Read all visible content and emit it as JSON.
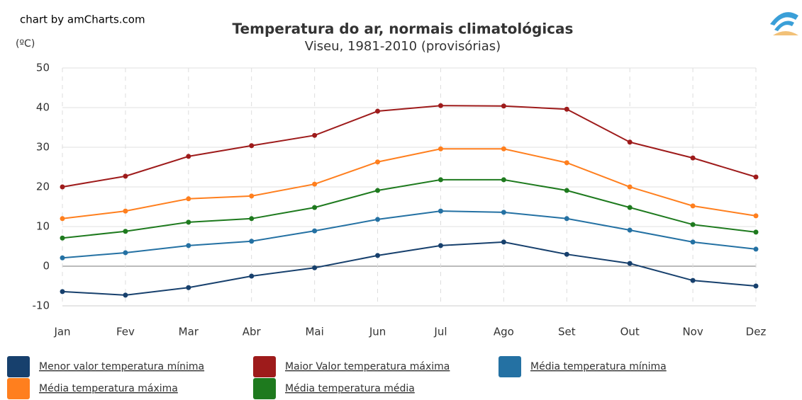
{
  "chart_data": {
    "type": "line",
    "credit": "chart by amCharts.com",
    "title": "Temperatura do ar, normais climatológicas",
    "subtitle": "Viseu, 1981-2010 (provisórias)",
    "y_label": "(ºC)",
    "categories": [
      "Jan",
      "Fev",
      "Mar",
      "Abr",
      "Mai",
      "Jun",
      "Jul",
      "Ago",
      "Set",
      "Out",
      "Nov",
      "Dez"
    ],
    "series": [
      {
        "name": "Menor valor temperatura mínima",
        "color": "#17406d",
        "values": [
          -6.4,
          -7.3,
          -5.4,
          -2.5,
          -0.4,
          2.7,
          5.2,
          6.1,
          3.0,
          0.7,
          -3.6,
          -5.0
        ]
      },
      {
        "name": "Maior Valor temperatura máxima",
        "color": "#9e1b1b",
        "values": [
          20.0,
          22.7,
          27.7,
          30.4,
          33.0,
          39.1,
          40.5,
          40.4,
          39.6,
          31.3,
          27.3,
          22.5
        ]
      },
      {
        "name": "Média temperatura mínima",
        "color": "#2471a3",
        "values": [
          2.1,
          3.4,
          5.2,
          6.3,
          8.9,
          11.8,
          13.9,
          13.6,
          12.0,
          9.1,
          6.1,
          4.3
        ]
      },
      {
        "name": "Média temperatura máxima",
        "color": "#ff7f1e",
        "values": [
          12.0,
          13.9,
          17.0,
          17.7,
          20.7,
          26.3,
          29.6,
          29.6,
          26.1,
          20.0,
          15.2,
          12.7
        ]
      },
      {
        "name": "Média temperatura média",
        "color": "#1e7a1e",
        "values": [
          7.1,
          8.8,
          11.1,
          12.0,
          14.8,
          19.1,
          21.8,
          21.8,
          19.1,
          14.8,
          10.5,
          8.6
        ]
      }
    ],
    "ylim": [
      -10,
      50
    ],
    "yticks": [
      -10,
      0,
      10,
      20,
      30,
      40,
      50
    ],
    "grid": true
  }
}
